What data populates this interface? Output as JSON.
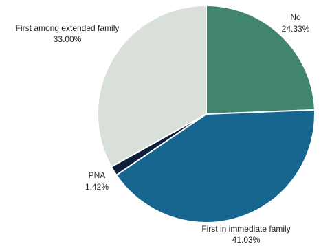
{
  "chart_data": {
    "type": "pie",
    "title": "",
    "start_angle_deg": 0,
    "direction": "clockwise",
    "slices": [
      {
        "label": "No",
        "percent_label": "24.33%",
        "value": 24.33,
        "color": "#418470"
      },
      {
        "label": "First in immediate family",
        "percent_label": "41.03%",
        "value": 41.03,
        "color": "#17668f"
      },
      {
        "label": "PNA",
        "percent_label": "1.42%",
        "value": 1.42,
        "color": "#0e1f3d"
      },
      {
        "label": "First among extended family",
        "percent_label": "33.00%",
        "value": 33.0,
        "color": "#d8e0d9"
      }
    ]
  }
}
